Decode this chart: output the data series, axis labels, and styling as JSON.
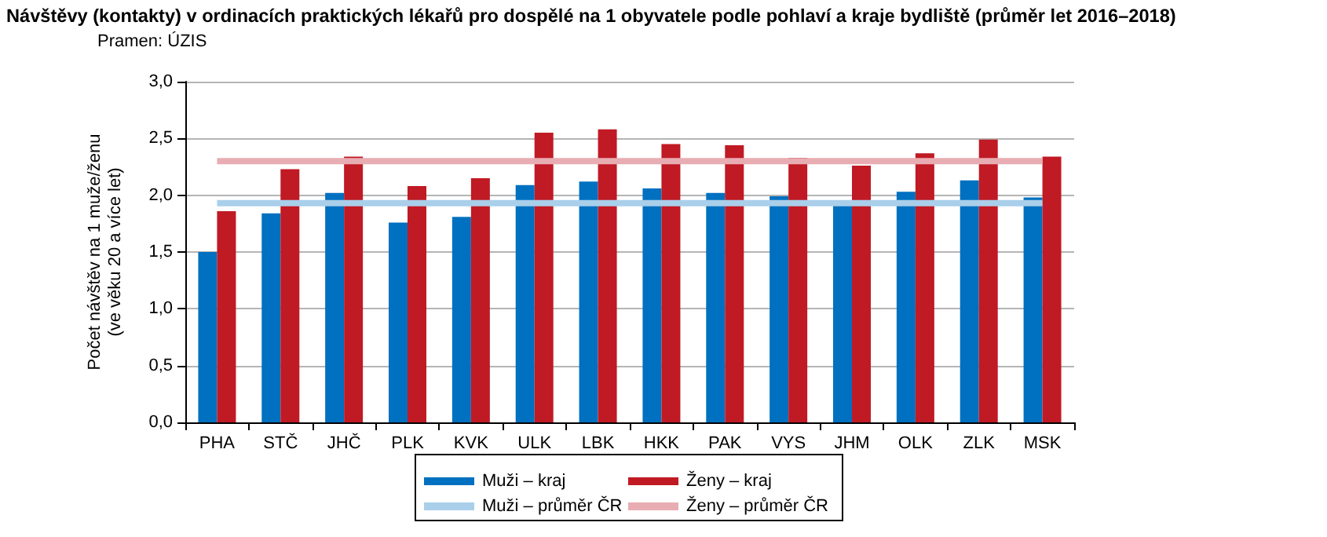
{
  "chart_data": {
    "type": "bar",
    "title": "Návštěvy (kontakty) v ordinacích praktických lékařů pro dospělé na 1 obyvatele podle pohlaví a kraje bydliště (průměr let 2016–2018)",
    "annotations": [
      "Pramen: ÚZIS"
    ],
    "ylabel": "Počet návštěv na 1 muže/ženu\n(ve věku 20 a více let)",
    "categories": [
      "PHA",
      "STČ",
      "JHČ",
      "PLK",
      "KVK",
      "ULK",
      "LBK",
      "HKK",
      "PAK",
      "VYS",
      "JHM",
      "OLK",
      "ZLK",
      "MSK"
    ],
    "series": [
      {
        "name": "Muži – kraj",
        "color": "#0070c0",
        "values": [
          1.5,
          1.84,
          2.02,
          1.76,
          1.81,
          2.09,
          2.12,
          2.06,
          2.02,
          1.99,
          1.93,
          2.03,
          2.13,
          1.98
        ]
      },
      {
        "name": "Ženy – kraj",
        "color": "#c01a24",
        "values": [
          1.86,
          2.23,
          2.34,
          2.08,
          2.15,
          2.55,
          2.58,
          2.45,
          2.44,
          2.33,
          2.26,
          2.37,
          2.49,
          2.34
        ]
      },
      {
        "name": "Muži – průměr ČR",
        "type": "line",
        "color": "#a9cfea",
        "values": [
          1.93,
          1.93,
          1.93,
          1.93,
          1.93,
          1.93,
          1.93,
          1.93,
          1.93,
          1.93,
          1.93,
          1.93,
          1.93,
          1.93
        ]
      },
      {
        "name": "Ženy – průměr ČR",
        "type": "line",
        "color": "#e8adb2",
        "values": [
          2.3,
          2.3,
          2.3,
          2.3,
          2.3,
          2.3,
          2.3,
          2.3,
          2.3,
          2.3,
          2.3,
          2.3,
          2.3,
          2.3
        ]
      }
    ],
    "ylim": [
      0,
      3
    ],
    "yticks": [
      {
        "value": 0,
        "label": "0,0"
      },
      {
        "value": 0.5,
        "label": "0,5"
      },
      {
        "value": 1,
        "label": "1,0"
      },
      {
        "value": 1.5,
        "label": "1,5"
      },
      {
        "value": 2,
        "label": "2,0"
      },
      {
        "value": 2.5,
        "label": "2,5"
      },
      {
        "value": 3,
        "label": "3,0"
      }
    ],
    "grid": "y",
    "legend": "bottom",
    "marker": "none",
    "line_style": "solid"
  }
}
